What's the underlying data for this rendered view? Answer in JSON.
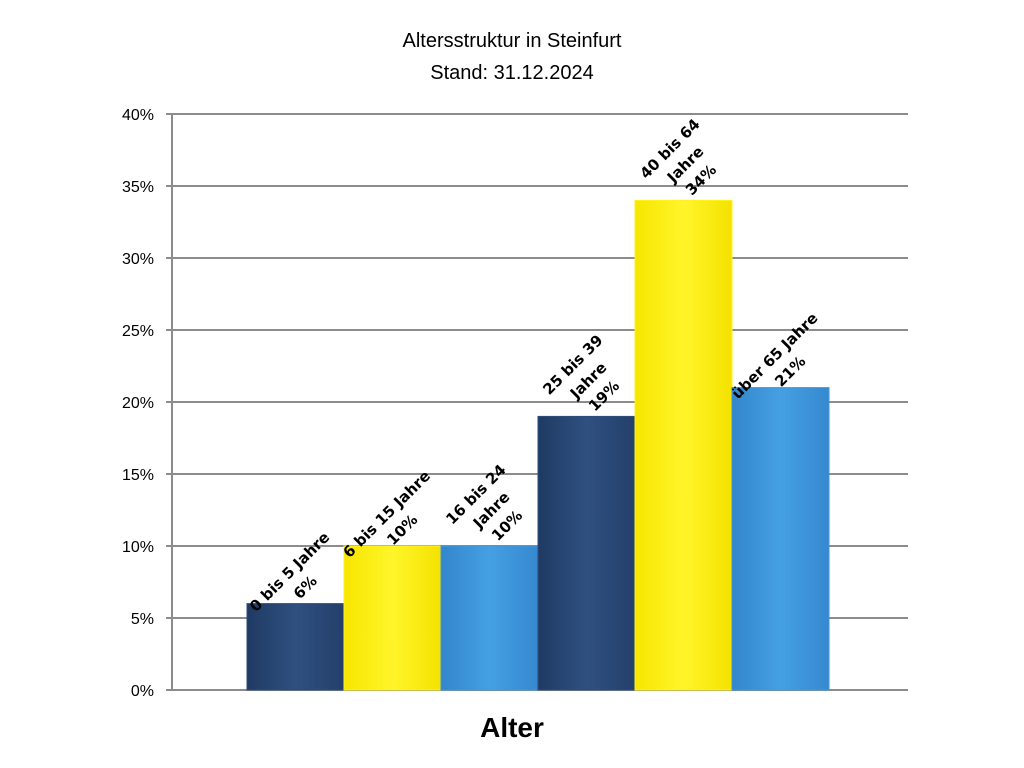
{
  "chart_data": {
    "type": "bar",
    "title": "Altersstruktur in Steinfurt",
    "subtitle": "Stand: 31.12.2024",
    "xlabel": "Alter",
    "ylabel": "",
    "ylim": [
      0,
      40
    ],
    "yticks": [
      "0%",
      "5%",
      "10%",
      "15%",
      "20%",
      "25%",
      "30%",
      "35%",
      "40%"
    ],
    "grid": true,
    "legend": "none",
    "categories": [
      [
        "0 bis 5 Jahre"
      ],
      [
        "6 bis 15 Jahre"
      ],
      [
        "16 bis 24",
        "Jahre"
      ],
      [
        "25 bis 39",
        "Jahre"
      ],
      [
        "40 bis 64",
        "Jahre"
      ],
      [
        "über 65 Jahre"
      ]
    ],
    "values": [
      6,
      10,
      10,
      19,
      34,
      21
    ],
    "value_labels": [
      "6%",
      "10%",
      "10%",
      "19%",
      "34%",
      "21%"
    ],
    "colors": [
      "#2e4d7b",
      "#fff21e",
      "#3f97db",
      "#2e4d7b",
      "#fff21e",
      "#3f97db"
    ]
  }
}
